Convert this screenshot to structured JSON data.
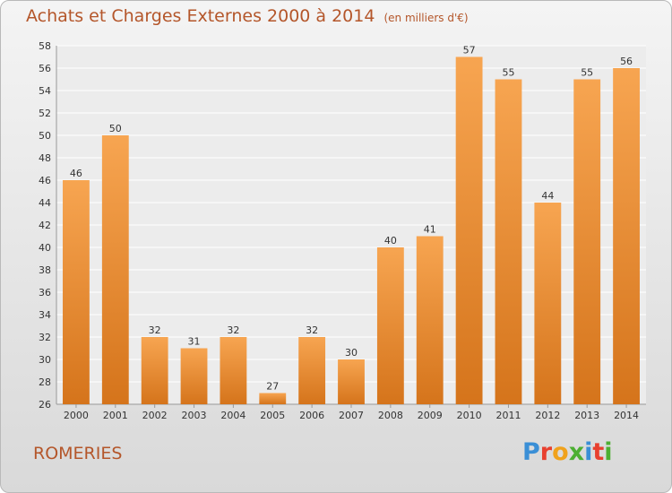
{
  "title": "Achats et Charges Externes 2000 à 2014",
  "subtitle": "(en milliers d'€)",
  "commune": "ROMERIES",
  "logo": {
    "letters": [
      "P",
      "r",
      "o",
      "x",
      "i",
      "t",
      "i"
    ],
    "colors": [
      "#3a8fd6",
      "#e8402f",
      "#f0a21c",
      "#4caf32",
      "#3a8fd6",
      "#e8402f",
      "#4caf32"
    ]
  },
  "colors": {
    "bar_top": "#f7a551",
    "bar_bottom": "#d5741b",
    "text_accent": "#b4562a"
  },
  "chart_data": {
    "type": "bar",
    "categories": [
      "2000",
      "2001",
      "2002",
      "2003",
      "2004",
      "2005",
      "2006",
      "2007",
      "2008",
      "2009",
      "2010",
      "2011",
      "2012",
      "2013",
      "2014"
    ],
    "values": [
      46,
      50,
      32,
      31,
      32,
      27,
      32,
      30,
      40,
      41,
      57,
      55,
      44,
      55,
      56
    ],
    "ylim": [
      26,
      58
    ],
    "yticks": [
      26,
      28,
      30,
      32,
      34,
      36,
      38,
      40,
      42,
      44,
      46,
      48,
      50,
      52,
      54,
      56,
      58
    ],
    "title": "Achats et Charges Externes 2000 à 2014",
    "xlabel": "",
    "ylabel": "",
    "grid": true
  }
}
